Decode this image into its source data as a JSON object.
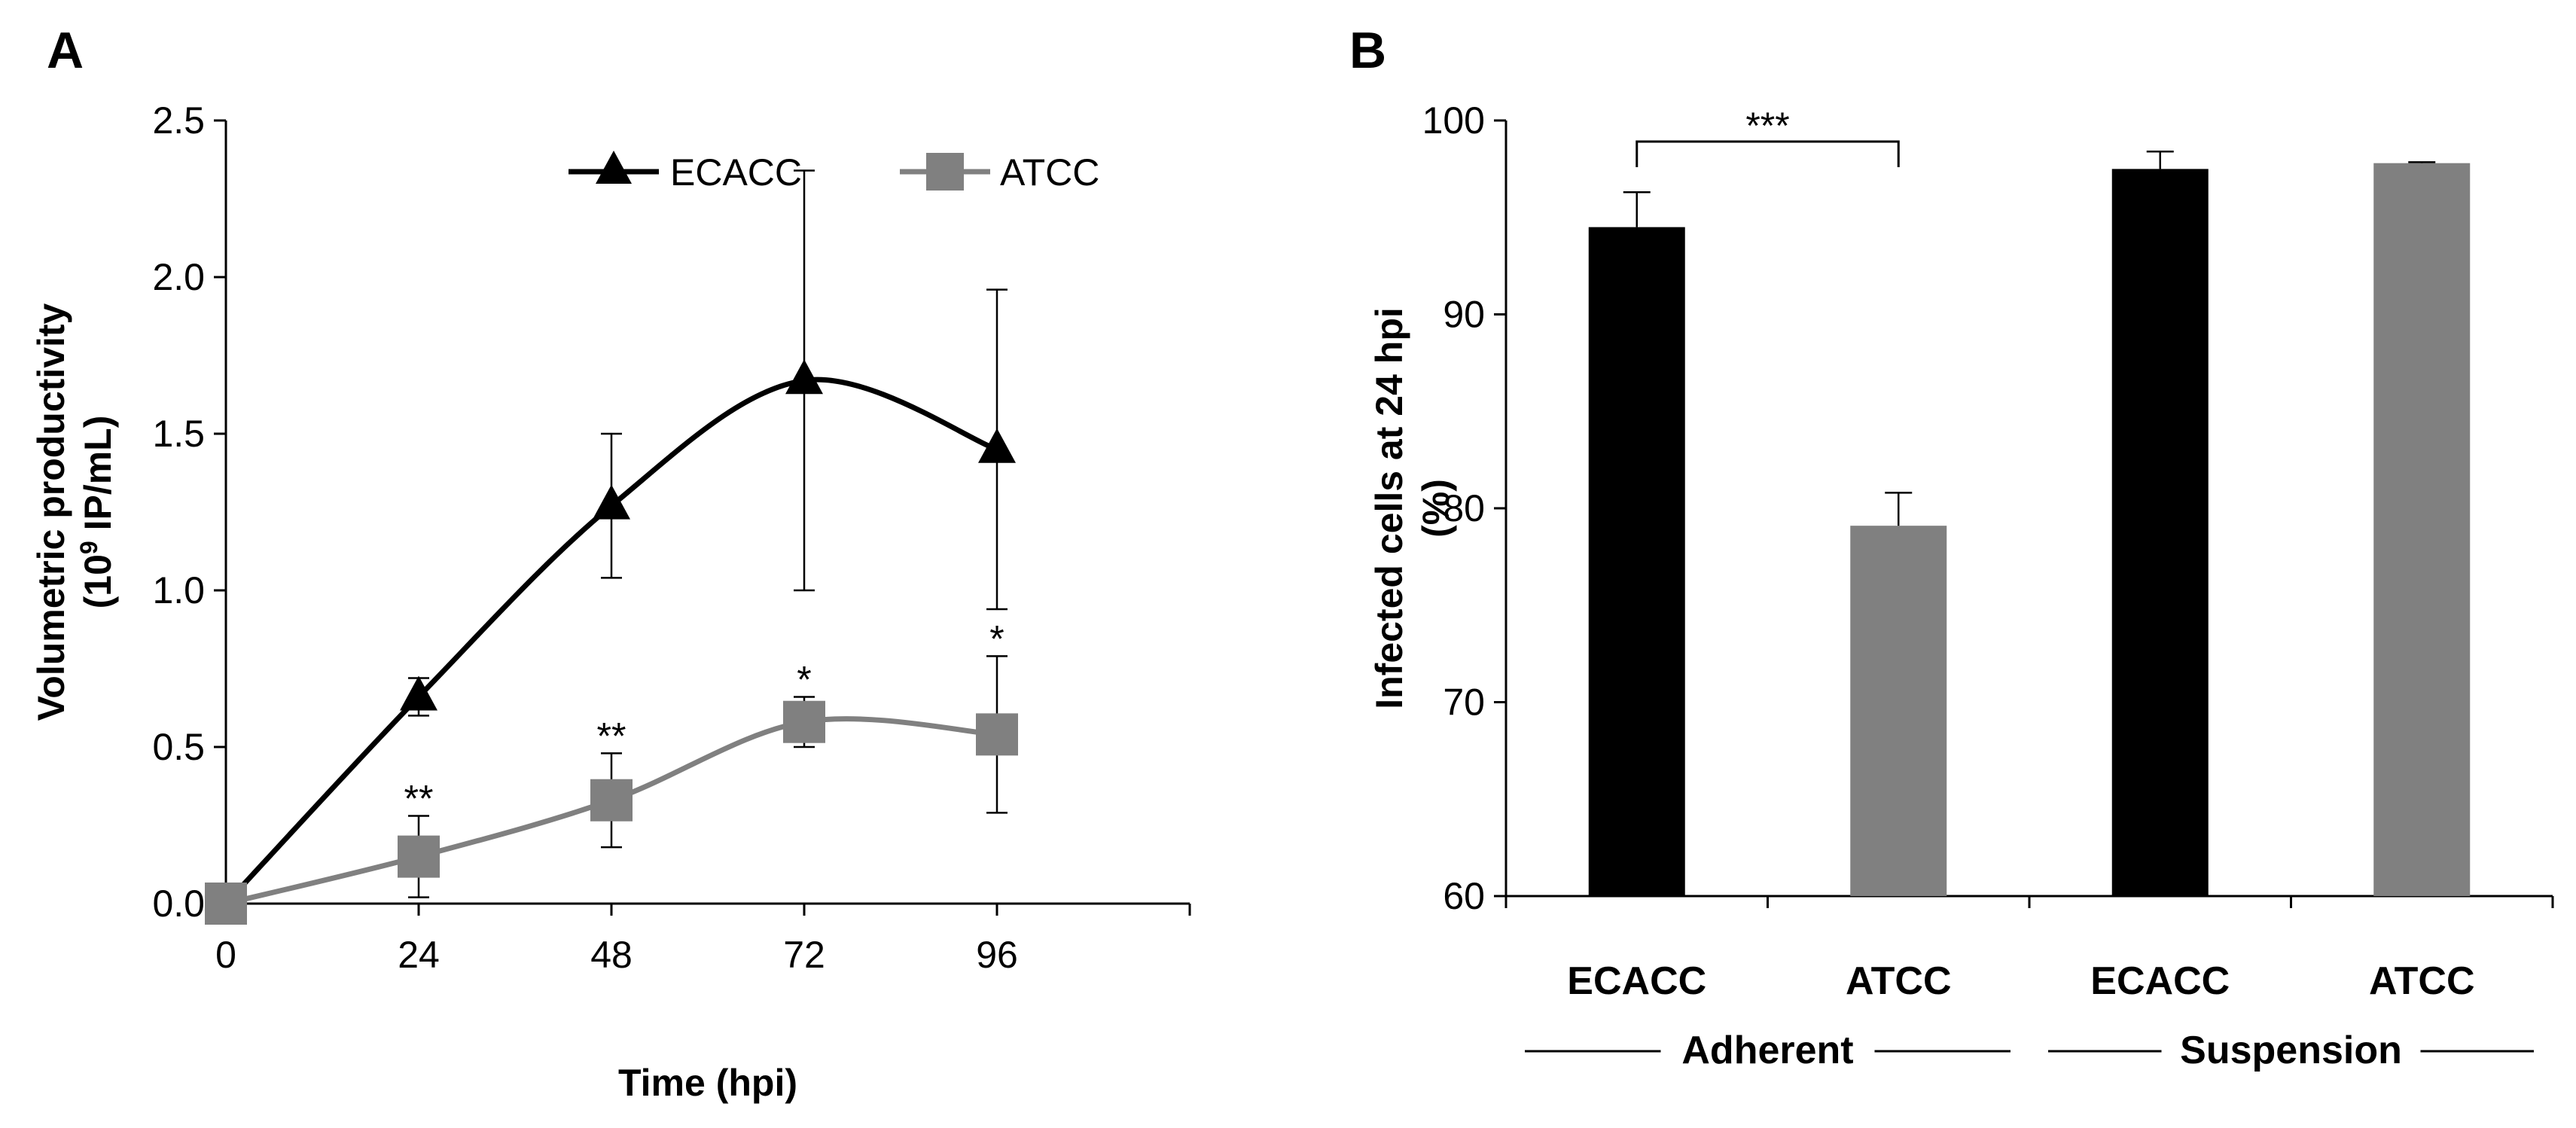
{
  "chart_data": [
    {
      "panel": "A",
      "type": "line",
      "xlabel": "Time (hpi)",
      "ylabel": "Volumetric productivity",
      "ylabel_line2": {
        "prefix": "(10",
        "superscript": "9",
        "suffix": " IP/mL)"
      },
      "x": [
        0,
        24,
        48,
        72,
        96
      ],
      "xticks": [
        "0",
        "24",
        "48",
        "72",
        "96"
      ],
      "xlim": [
        0,
        120
      ],
      "ylim": [
        0,
        2.5
      ],
      "yticks": [
        "0.0",
        "0.5",
        "1.0",
        "1.5",
        "2.0",
        "2.5"
      ],
      "grid": false,
      "legend_position": "top-right",
      "series": [
        {
          "name": "ECACC",
          "values": [
            0.0,
            0.66,
            1.27,
            1.67,
            1.45
          ],
          "errors": [
            0.0,
            0.06,
            0.23,
            0.67,
            0.51
          ],
          "color": "#000000",
          "marker": "triangle",
          "annotations": [
            "",
            "",
            "",
            "",
            ""
          ]
        },
        {
          "name": "ATCC",
          "values": [
            0.0,
            0.15,
            0.33,
            0.58,
            0.54
          ],
          "errors": [
            0.0,
            0.13,
            0.15,
            0.08,
            0.25
          ],
          "color": "#808080",
          "marker": "square",
          "annotations": [
            "",
            "**",
            "**",
            "*",
            "*"
          ]
        }
      ]
    },
    {
      "panel": "B",
      "type": "bar",
      "ylabel": "Infected cells at 24 hpi",
      "ylabel_line2": "(%)",
      "categories": [
        "ECACC",
        "ATCC",
        "ECACC",
        "ATCC"
      ],
      "values": [
        94.5,
        79.1,
        97.5,
        97.8
      ],
      "errors": [
        1.8,
        1.7,
        0.9,
        0.05
      ],
      "colors": [
        "#000000",
        "#808080",
        "#000000",
        "#808080"
      ],
      "ylim": [
        60,
        100
      ],
      "yticks": [
        "60",
        "70",
        "80",
        "90",
        "100"
      ],
      "grid": false,
      "groups": [
        {
          "label": "Adherent",
          "categories": [
            0,
            1
          ]
        },
        {
          "label": "Suspension",
          "categories": [
            2,
            3
          ]
        }
      ],
      "significance": {
        "from": 0,
        "to": 1,
        "label": "***"
      }
    }
  ]
}
